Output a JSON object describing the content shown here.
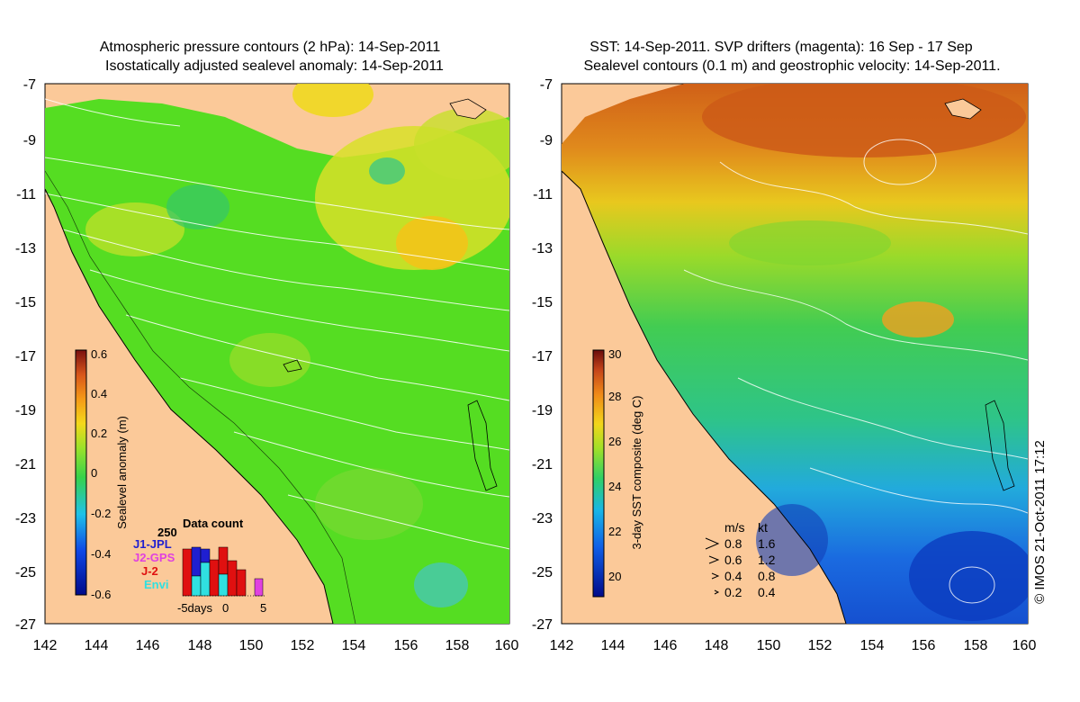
{
  "left_panel": {
    "title_line1": "Atmospheric pressure contours (2 hPa): 14-Sep-2011",
    "title_line2": "Isostatically adjusted sealevel anomaly: 14-Sep-2011",
    "colorbar": {
      "label": "Sealevel anomaly (m)",
      "ticks": [
        "0.6",
        "0.4",
        "0.2",
        "0",
        "-0.2",
        "-0.4",
        "-0.6"
      ],
      "range": [
        -0.6,
        0.6
      ]
    },
    "data_count": {
      "title": "Data count",
      "y_max_label": "250",
      "x_label": "-5days",
      "x_ticks": [
        "0",
        "5"
      ],
      "legend": [
        {
          "name": "J1-JPL",
          "color": "#1f1fd0"
        },
        {
          "name": "J2-GPS",
          "color": "#e040e0"
        },
        {
          "name": "J-2",
          "color": "#e01010"
        },
        {
          "name": "Envi",
          "color": "#30e0e0"
        }
      ]
    }
  },
  "right_panel": {
    "title_line1": "SST: 14-Sep-2011. SVP drifters (magenta): 16 Sep - 17 Sep",
    "title_line2": "Sealevel contours (0.1 m) and geostrophic velocity: 14-Sep-2011.",
    "colorbar": {
      "label": "3-day SST composite (deg C)",
      "ticks": [
        "30",
        "28",
        "26",
        "24",
        "22",
        "20"
      ],
      "range": [
        19,
        30
      ]
    },
    "velocity_key": {
      "headers": [
        "m/s",
        "kt"
      ],
      "rows": [
        [
          "0.8",
          "1.6"
        ],
        [
          "0.6",
          "1.2"
        ],
        [
          "0.4",
          "0.8"
        ],
        [
          "0.2",
          "0.4"
        ]
      ]
    },
    "credit": "© IMOS 21-Oct-2011 17:12"
  },
  "axes": {
    "y_ticks": [
      "-7",
      "-9",
      "-11",
      "-13",
      "-15",
      "-17",
      "-19",
      "-21",
      "-23",
      "-25",
      "-27"
    ],
    "x_ticks": [
      "142",
      "144",
      "146",
      "148",
      "150",
      "152",
      "154",
      "156",
      "158",
      "160"
    ]
  },
  "colors": {
    "land": "#fbc999",
    "sla_base": "#55dd22",
    "sst_warm": "#d2661a",
    "sst_cool": "#1b6fe0"
  }
}
